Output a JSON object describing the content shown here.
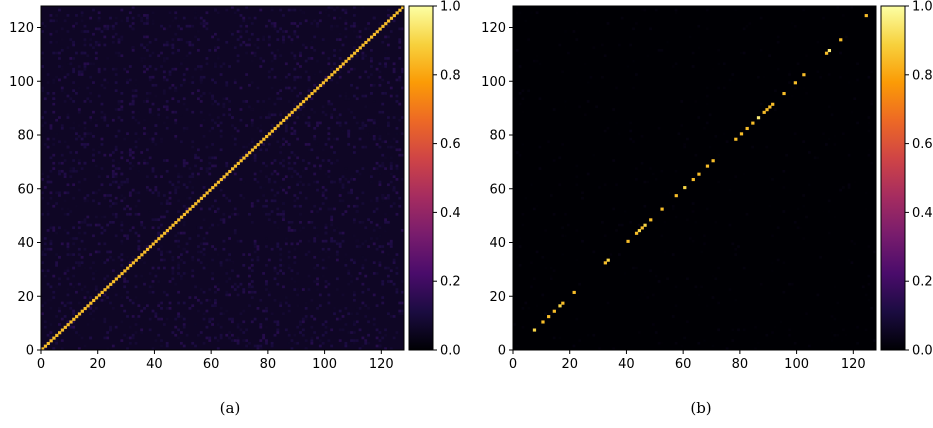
{
  "figure": {
    "captions": [
      "(a)",
      "(b)"
    ]
  },
  "colormap": {
    "name": "inferno",
    "stops": [
      "#000004",
      "#1b0c41",
      "#4a0c6b",
      "#781c6d",
      "#a52c60",
      "#cf4446",
      "#ed6925",
      "#fb9b06",
      "#f7d13d",
      "#fcffa4"
    ]
  },
  "chart_data": [
    {
      "type": "heatmap",
      "caption": "(a)",
      "title": "",
      "xlabel": "",
      "ylabel": "",
      "size": 128,
      "xlim": [
        0,
        128
      ],
      "ylim": [
        0,
        128
      ],
      "x_ticks": [
        "0",
        "20",
        "40",
        "60",
        "80",
        "100",
        "120"
      ],
      "y_ticks": [
        "0",
        "20",
        "40",
        "60",
        "80",
        "100",
        "120"
      ],
      "colorbar": {
        "range": [
          0.0,
          1.0
        ],
        "ticks": [
          "0.0",
          "0.2",
          "0.4",
          "0.6",
          "0.8",
          "1.0"
        ]
      },
      "background_level": 0.06,
      "background_noise": 0.08,
      "diagonal": {
        "indices": "all 0-127",
        "value": 0.85
      }
    },
    {
      "type": "heatmap",
      "caption": "(b)",
      "title": "",
      "xlabel": "",
      "ylabel": "",
      "size": 128,
      "xlim": [
        0,
        128
      ],
      "ylim": [
        0,
        128
      ],
      "x_ticks": [
        "0",
        "20",
        "40",
        "60",
        "80",
        "100",
        "120"
      ],
      "y_ticks": [
        "0",
        "20",
        "40",
        "60",
        "80",
        "100",
        "120"
      ],
      "colorbar": {
        "range": [
          0.0,
          1.0
        ],
        "ticks": [
          "0.0",
          "0.2",
          "0.4",
          "0.6",
          "0.8",
          "1.0"
        ]
      },
      "background_level": 0.0,
      "background_noise": 0.02,
      "diagonal_points": [
        {
          "i": 7,
          "v": 0.9
        },
        {
          "i": 10,
          "v": 0.85
        },
        {
          "i": 12,
          "v": 0.85
        },
        {
          "i": 14,
          "v": 0.85
        },
        {
          "i": 16,
          "v": 0.9
        },
        {
          "i": 17,
          "v": 0.85
        },
        {
          "i": 21,
          "v": 0.85
        },
        {
          "i": 32,
          "v": 0.85
        },
        {
          "i": 33,
          "v": 0.9
        },
        {
          "i": 40,
          "v": 0.85
        },
        {
          "i": 43,
          "v": 0.85
        },
        {
          "i": 44,
          "v": 0.9
        },
        {
          "i": 45,
          "v": 0.85
        },
        {
          "i": 46,
          "v": 0.9
        },
        {
          "i": 48,
          "v": 0.85
        },
        {
          "i": 52,
          "v": 0.85
        },
        {
          "i": 57,
          "v": 0.85
        },
        {
          "i": 60,
          "v": 0.9
        },
        {
          "i": 63,
          "v": 0.85
        },
        {
          "i": 65,
          "v": 0.85
        },
        {
          "i": 68,
          "v": 0.85
        },
        {
          "i": 70,
          "v": 0.85
        },
        {
          "i": 78,
          "v": 0.85
        },
        {
          "i": 80,
          "v": 0.85
        },
        {
          "i": 82,
          "v": 0.85
        },
        {
          "i": 84,
          "v": 0.85
        },
        {
          "i": 86,
          "v": 0.95
        },
        {
          "i": 88,
          "v": 0.85
        },
        {
          "i": 89,
          "v": 0.85
        },
        {
          "i": 90,
          "v": 0.85
        },
        {
          "i": 91,
          "v": 0.85
        },
        {
          "i": 95,
          "v": 0.85
        },
        {
          "i": 99,
          "v": 0.85
        },
        {
          "i": 102,
          "v": 0.85
        },
        {
          "i": 110,
          "v": 0.85
        },
        {
          "i": 111,
          "v": 0.95
        },
        {
          "i": 115,
          "v": 0.85
        },
        {
          "i": 124,
          "v": 0.85
        }
      ]
    }
  ]
}
